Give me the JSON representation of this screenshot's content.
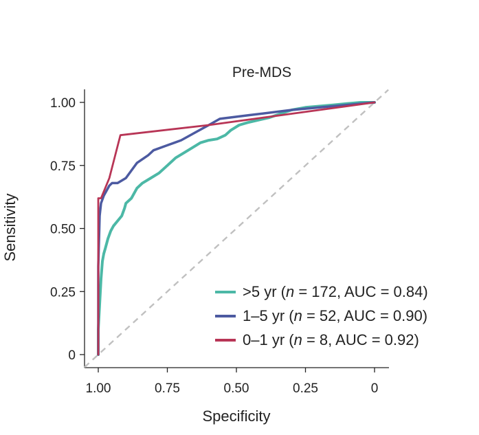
{
  "chart_data": {
    "type": "line",
    "title": "Pre-MDS",
    "xlabel": "Specificity",
    "ylabel": "Sensitivity",
    "x_reversed": true,
    "xlim": [
      1.0,
      0.0
    ],
    "ylim": [
      0.0,
      1.0
    ],
    "x_ticks": [
      1.0,
      0.75,
      0.5,
      0.25,
      0.0
    ],
    "x_tick_labels": [
      "1.00",
      "0.75",
      "0.50",
      "0.25",
      "0"
    ],
    "y_ticks": [
      0.0,
      0.25,
      0.5,
      0.75,
      1.0
    ],
    "y_tick_labels": [
      "0",
      "0.25",
      "0.50",
      "0.75",
      "1.00"
    ],
    "reference_line": {
      "style": "dashed",
      "color": "#c0c0c0",
      "from": [
        1.0,
        0.0
      ],
      "to": [
        0.0,
        1.0
      ]
    },
    "legend_position": "bottom-right",
    "series": [
      {
        "name": ">5 yr",
        "n": "172",
        "auc": "0.84",
        "color": "#4cb8a6",
        "points": [
          [
            1.0,
            0.0
          ],
          [
            1.0,
            0.1
          ],
          [
            0.995,
            0.2
          ],
          [
            0.99,
            0.3
          ],
          [
            0.985,
            0.37
          ],
          [
            0.98,
            0.4
          ],
          [
            0.975,
            0.42
          ],
          [
            0.965,
            0.46
          ],
          [
            0.955,
            0.49
          ],
          [
            0.945,
            0.51
          ],
          [
            0.93,
            0.53
          ],
          [
            0.915,
            0.55
          ],
          [
            0.905,
            0.58
          ],
          [
            0.9,
            0.6
          ],
          [
            0.88,
            0.62
          ],
          [
            0.86,
            0.66
          ],
          [
            0.84,
            0.68
          ],
          [
            0.81,
            0.7
          ],
          [
            0.78,
            0.72
          ],
          [
            0.75,
            0.75
          ],
          [
            0.72,
            0.78
          ],
          [
            0.69,
            0.8
          ],
          [
            0.66,
            0.82
          ],
          [
            0.63,
            0.84
          ],
          [
            0.6,
            0.85
          ],
          [
            0.57,
            0.855
          ],
          [
            0.54,
            0.87
          ],
          [
            0.52,
            0.89
          ],
          [
            0.49,
            0.91
          ],
          [
            0.46,
            0.92
          ],
          [
            0.42,
            0.93
          ],
          [
            0.38,
            0.94
          ],
          [
            0.34,
            0.955
          ],
          [
            0.3,
            0.97
          ],
          [
            0.25,
            0.98
          ],
          [
            0.2,
            0.985
          ],
          [
            0.15,
            0.99
          ],
          [
            0.1,
            0.995
          ],
          [
            0.05,
            1.0
          ],
          [
            0.0,
            1.0
          ]
        ]
      },
      {
        "name": "1–5 yr",
        "n": "52",
        "auc": "0.90",
        "color": "#4c5aa1",
        "points": [
          [
            1.0,
            0.0
          ],
          [
            1.0,
            0.35
          ],
          [
            0.995,
            0.55
          ],
          [
            0.99,
            0.6
          ],
          [
            0.98,
            0.63
          ],
          [
            0.97,
            0.65
          ],
          [
            0.96,
            0.67
          ],
          [
            0.95,
            0.68
          ],
          [
            0.93,
            0.68
          ],
          [
            0.9,
            0.7
          ],
          [
            0.88,
            0.73
          ],
          [
            0.86,
            0.76
          ],
          [
            0.82,
            0.79
          ],
          [
            0.8,
            0.81
          ],
          [
            0.75,
            0.83
          ],
          [
            0.7,
            0.85
          ],
          [
            0.65,
            0.88
          ],
          [
            0.6,
            0.91
          ],
          [
            0.56,
            0.935
          ],
          [
            0.45,
            0.95
          ],
          [
            0.3,
            0.97
          ],
          [
            0.15,
            0.985
          ],
          [
            0.0,
            1.0
          ]
        ]
      },
      {
        "name": "0–1 yr",
        "n": "8",
        "auc": "0.92",
        "color": "#b83556",
        "points": [
          [
            1.0,
            0.0
          ],
          [
            1.0,
            0.62
          ],
          [
            0.99,
            0.62
          ],
          [
            0.96,
            0.7
          ],
          [
            0.92,
            0.87
          ],
          [
            0.6,
            0.91
          ],
          [
            0.3,
            0.955
          ],
          [
            0.0,
            1.0
          ]
        ]
      }
    ]
  }
}
